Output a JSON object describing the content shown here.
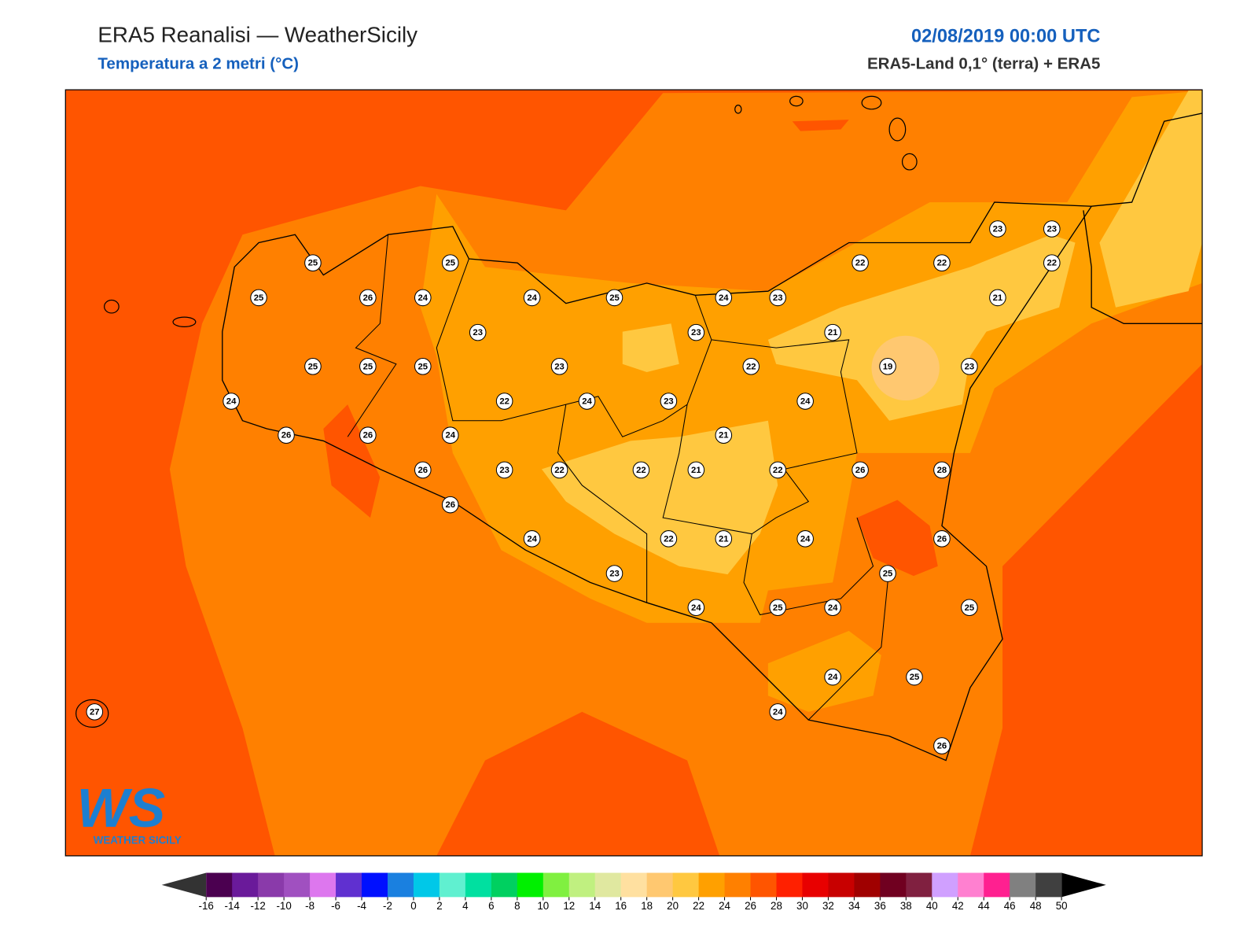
{
  "header": {
    "title": "ERA5 Reanalisi — WeatherSicily",
    "subtitle": "Temperatura a 2 metri (°C)",
    "date": "02/08/2019 00:00 UTC",
    "source": "ERA5-Land 0,1° (terra) + ERA5"
  },
  "logo": {
    "mark": "WS",
    "name": "WEATHER SICILY"
  },
  "map": {
    "stations": [
      25,
      25,
      23,
      23,
      22,
      22,
      22,
      25,
      26,
      24,
      24,
      25,
      24,
      23,
      21,
      23,
      23,
      21,
      25,
      25,
      25,
      23,
      22,
      19,
      23,
      24,
      22,
      24,
      23,
      24,
      26,
      26,
      24,
      21,
      26,
      23,
      22,
      22,
      21,
      22,
      26,
      28,
      26,
      24,
      22,
      21,
      24,
      26,
      25,
      23,
      24,
      25,
      24,
      25,
      24,
      25,
      27,
      24,
      26
    ]
  },
  "colorbar": {
    "ticks": [
      -16,
      -14,
      -12,
      -10,
      -8,
      -6,
      -4,
      -2,
      0,
      2,
      4,
      6,
      8,
      10,
      12,
      14,
      16,
      18,
      20,
      22,
      24,
      26,
      28,
      30,
      32,
      34,
      36,
      38,
      40,
      42,
      44,
      46,
      48,
      50
    ],
    "colors": [
      "#4b0050",
      "#6a1a9a",
      "#8a3aaa",
      "#a050c0",
      "#dd77ee",
      "#6030d0",
      "#0010ff",
      "#1a80e0",
      "#00c8e8",
      "#60f0d0",
      "#00e0a0",
      "#00d060",
      "#00f000",
      "#80f040",
      "#c0f080",
      "#e0e8a0",
      "#ffe0a0",
      "#ffc870",
      "#ffc840",
      "#ffa000",
      "#ff8000",
      "#ff5500",
      "#ff2000",
      "#e80000",
      "#c80000",
      "#a00000",
      "#700020",
      "#802040",
      "#d0a0ff",
      "#ff80d0",
      "#ff2090",
      "#808080",
      "#404040"
    ],
    "under_color": "#333333",
    "over_color": "#000000"
  }
}
